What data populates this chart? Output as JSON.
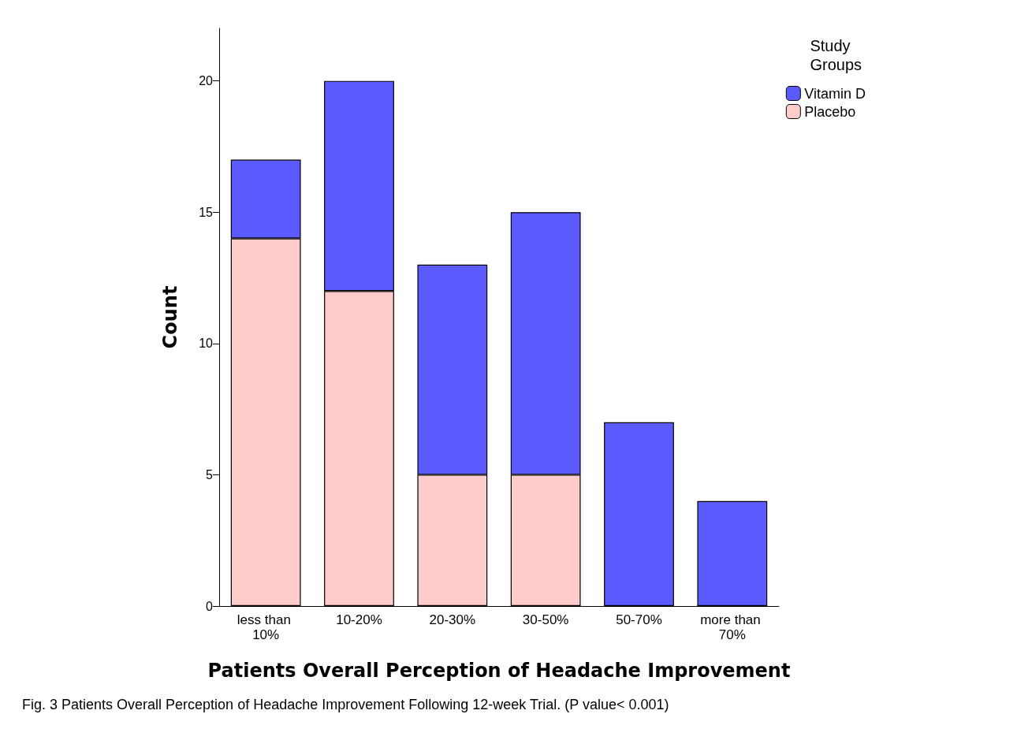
{
  "chart_data": {
    "type": "bar",
    "stacked": true,
    "xlabel": "Patients Overall Perception of Headache Improvement",
    "ylabel": "Count",
    "legend_title": "Study Groups",
    "legend": "top right",
    "grid": false,
    "categories": [
      "less than 10%",
      "10-20%",
      "20-30%",
      "30-50%",
      "50-70%",
      "more than 70%"
    ],
    "series": [
      {
        "name": "Placebo",
        "color": "#ffcccc",
        "values": [
          14,
          12,
          5,
          5,
          0,
          0
        ]
      },
      {
        "name": "Vitamin D",
        "color": "#5a5aff",
        "values": [
          3,
          8,
          8,
          10,
          7,
          4
        ]
      }
    ],
    "ylim": [
      0,
      22
    ],
    "yticks": [
      0,
      5,
      10,
      15,
      20
    ],
    "annotations": [
      "Fig. 3 Patients Overall Perception of Headache Improvement Following 12-week Trial. (P value< 0.001)"
    ]
  }
}
